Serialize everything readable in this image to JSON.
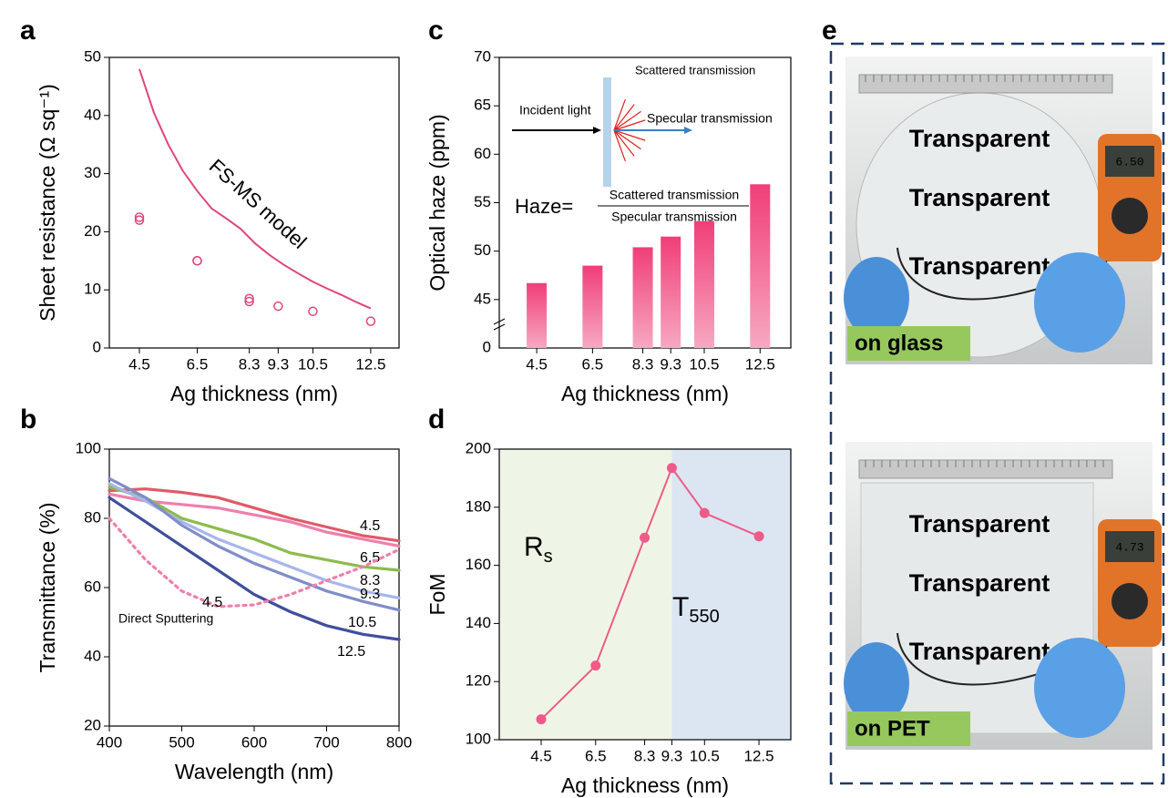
{
  "chart_data": [
    {
      "panel_label": "a",
      "type": "scatter",
      "xlabel": "Ag thickness (nm)",
      "ylabel": "Sheet resistance (Ω sq⁻¹)",
      "xlim": [
        3.46,
        13.48
      ],
      "ylim": [
        0,
        50
      ],
      "xticks": [
        4.5,
        6.5,
        8.3,
        9.3,
        10.5,
        12.5
      ],
      "yticks": [
        0,
        10,
        20,
        30,
        40,
        50
      ],
      "series": [
        {
          "type": "scatter",
          "color": "#e0457b",
          "x": [
            4.5,
            4.5,
            6.5,
            6.5,
            8.3,
            8.3,
            9.3,
            10.5,
            12.5
          ],
          "values": [
            22.5,
            22,
            15,
            15,
            8.5,
            8,
            7.2,
            6.3,
            4.6
          ]
        },
        {
          "type": "line",
          "name": "FS-MS model",
          "color": "#e0457b",
          "x": [
            4.5,
            5,
            5.5,
            6,
            6.5,
            7,
            7.5,
            8,
            8.5,
            9,
            9.5,
            10,
            10.5,
            11,
            11.5,
            12,
            12.5
          ],
          "values": [
            48,
            40.5,
            35,
            30.5,
            27,
            24,
            22.3,
            20.5,
            18,
            16,
            14.3,
            12.8,
            11.4,
            10.2,
            9.1,
            7.9,
            6.8
          ]
        }
      ]
    },
    {
      "panel_label": "b",
      "type": "line",
      "xlabel": "Wavelength (nm)",
      "ylabel": "Transmittance (%)",
      "xlim": [
        400,
        800
      ],
      "ylim": [
        20,
        100
      ],
      "xticks": [
        400,
        500,
        600,
        700,
        800
      ],
      "yticks": [
        20,
        40,
        60,
        80,
        100
      ],
      "x": [
        400,
        450,
        500,
        550,
        600,
        650,
        700,
        750,
        800
      ],
      "series": [
        {
          "name": "4.5",
          "color": "#e05a6a",
          "values": [
            88,
            88.5,
            87.5,
            86,
            83,
            80,
            77.5,
            75,
            73.5
          ]
        },
        {
          "name": "6.5",
          "color": "#ef7fab",
          "values": [
            87,
            85,
            84,
            83,
            81,
            79,
            76,
            74,
            72
          ]
        },
        {
          "name": "8.3",
          "color": "#8dbb4c",
          "values": [
            89,
            86,
            80,
            77,
            74,
            70,
            68,
            66,
            65
          ]
        },
        {
          "name": "9.3",
          "color": "#a7b6ec",
          "values": [
            90,
            85,
            79,
            74,
            70,
            66,
            62,
            59,
            57
          ]
        },
        {
          "name": "10.5",
          "color": "#7f8dc9",
          "values": [
            91.5,
            86,
            78,
            72,
            67,
            63,
            59,
            56,
            53.5
          ]
        },
        {
          "name": "12.5",
          "color": "#3f4f9c",
          "values": [
            86,
            79,
            72,
            65,
            58,
            53,
            49,
            46.5,
            45
          ]
        },
        {
          "name": "Direct Sputtering",
          "annotation": "4.5",
          "color": "#ef7fab",
          "dash": true,
          "values": [
            80,
            68,
            59,
            54.5,
            55,
            58,
            62,
            66,
            71
          ]
        }
      ]
    },
    {
      "panel_label": "c",
      "type": "bar",
      "xlabel": "Ag thickness (nm)",
      "ylabel": "Optical haze (ppm)",
      "xlim": [
        3.16,
        13.6
      ],
      "ylim": [
        40,
        70
      ],
      "xticks": [
        4.5,
        6.5,
        8.3,
        9.3,
        10.5,
        12.5
      ],
      "yticks": [
        45,
        50,
        55,
        60,
        65,
        70
      ],
      "ybreak_label": "0",
      "x": [
        4.5,
        6.5,
        8.3,
        9.3,
        10.5,
        12.5
      ],
      "values": [
        46.7,
        48.5,
        50.4,
        51.5,
        53.1,
        56.9
      ],
      "color": "#f03e78",
      "inset": {
        "incident": "Incident light",
        "scattered": "Scattered transmission",
        "specular": "Specular transmission",
        "formula": "Haze=",
        "numerator": "Scattered transmission",
        "denominator": "Specular transmission"
      }
    },
    {
      "panel_label": "d",
      "type": "line",
      "xlabel": "Ag thickness (nm)",
      "ylabel": "FoM",
      "xlim": [
        2.96,
        13.67
      ],
      "ylim": [
        100,
        200
      ],
      "xticks": [
        4.5,
        6.5,
        8.3,
        9.3,
        10.5,
        12.5
      ],
      "yticks": [
        100,
        120,
        140,
        160,
        180,
        200
      ],
      "x": [
        4.5,
        6.5,
        8.3,
        9.3,
        10.5,
        12.5
      ],
      "markers": true,
      "split": 9.3,
      "region_colors": [
        "#eef5e6",
        "#dbe6f2"
      ],
      "region_labels": [
        {
          "text": "R",
          "sub": "s",
          "color": "#7cb342"
        },
        {
          "text": "T",
          "sub": "550",
          "color": "#1f6fb5"
        }
      ],
      "series": [
        {
          "color": "#ee5b8a",
          "values": [
            107,
            125.5,
            169.5,
            193.5,
            178,
            170
          ]
        }
      ]
    }
  ],
  "photos": {
    "panel_label": "e",
    "panels": [
      {
        "words": [
          "Transparent",
          "Transparent",
          "Transparent"
        ],
        "display": "6.50",
        "caption": "on glass"
      },
      {
        "words": [
          "Transparent",
          "Transparent",
          "Transparent"
        ],
        "display": "4.73",
        "caption": "on PET"
      }
    ]
  }
}
